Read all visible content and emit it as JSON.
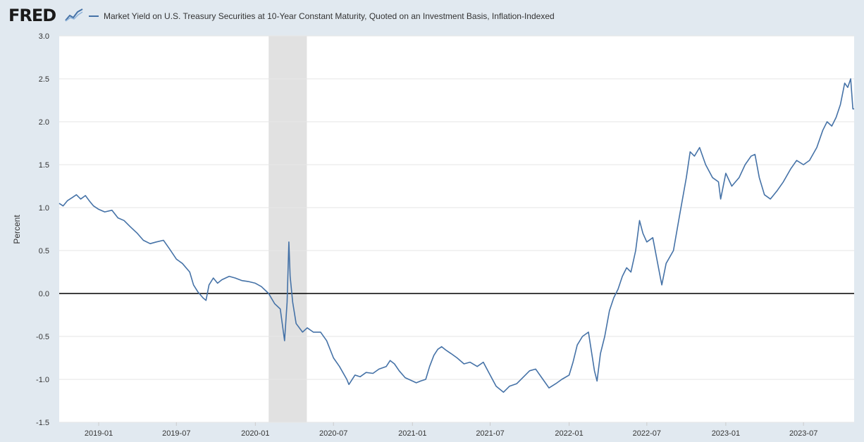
{
  "header": {
    "logo_text": "FRED",
    "logo_graph_icon": "fred-graph-icon"
  },
  "colors": {
    "line": "#4572a7",
    "recession": "#e1e1e1",
    "background": "#e1e9f0",
    "plot": "#ffffff",
    "zero_line": "#000000"
  },
  "chart_data": {
    "type": "line",
    "title": "",
    "xlabel": "",
    "ylabel": "Percent",
    "ylim": [
      -1.5,
      3.0
    ],
    "xlim": [
      "2018-10-01",
      "2023-10-27"
    ],
    "y_ticks": [
      "-1.5",
      "-1.0",
      "-0.5",
      "0.0",
      "0.5",
      "1.0",
      "1.5",
      "2.0",
      "2.5",
      "3.0"
    ],
    "x_ticks": [
      {
        "label": "2019-01",
        "date": "2019-01-01"
      },
      {
        "label": "2019-07",
        "date": "2019-07-01"
      },
      {
        "label": "2020-01",
        "date": "2020-01-01"
      },
      {
        "label": "2020-07",
        "date": "2020-07-01"
      },
      {
        "label": "2021-01",
        "date": "2021-01-01"
      },
      {
        "label": "2021-07",
        "date": "2021-07-01"
      },
      {
        "label": "2022-01",
        "date": "2022-01-01"
      },
      {
        "label": "2022-07",
        "date": "2022-07-01"
      },
      {
        "label": "2023-01",
        "date": "2023-01-01"
      },
      {
        "label": "2023-07",
        "date": "2023-07-01"
      }
    ],
    "grid": true,
    "reference_line": 0.0,
    "recession": {
      "start": "2020-02-01",
      "end": "2020-04-30"
    },
    "series": [
      {
        "name": "Market Yield on U.S. Treasury Securities at 10-Year Constant Maturity, Quoted on an Investment Basis, Inflation-Indexed",
        "points": [
          [
            "2018-10-01",
            1.05
          ],
          [
            "2018-10-10",
            1.02
          ],
          [
            "2018-10-20",
            1.08
          ],
          [
            "2018-11-01",
            1.12
          ],
          [
            "2018-11-10",
            1.15
          ],
          [
            "2018-11-20",
            1.1
          ],
          [
            "2018-12-01",
            1.14
          ],
          [
            "2018-12-10",
            1.08
          ],
          [
            "2018-12-20",
            1.02
          ],
          [
            "2019-01-01",
            0.98
          ],
          [
            "2019-01-15",
            0.95
          ],
          [
            "2019-02-01",
            0.97
          ],
          [
            "2019-02-15",
            0.88
          ],
          [
            "2019-03-01",
            0.85
          ],
          [
            "2019-03-15",
            0.78
          ],
          [
            "2019-04-01",
            0.7
          ],
          [
            "2019-04-15",
            0.62
          ],
          [
            "2019-05-01",
            0.58
          ],
          [
            "2019-05-15",
            0.6
          ],
          [
            "2019-06-01",
            0.62
          ],
          [
            "2019-06-15",
            0.52
          ],
          [
            "2019-07-01",
            0.4
          ],
          [
            "2019-07-15",
            0.35
          ],
          [
            "2019-08-01",
            0.25
          ],
          [
            "2019-08-10",
            0.1
          ],
          [
            "2019-08-20",
            0.02
          ],
          [
            "2019-09-01",
            -0.05
          ],
          [
            "2019-09-08",
            -0.08
          ],
          [
            "2019-09-15",
            0.1
          ],
          [
            "2019-09-25",
            0.18
          ],
          [
            "2019-10-05",
            0.12
          ],
          [
            "2019-10-15",
            0.16
          ],
          [
            "2019-11-01",
            0.2
          ],
          [
            "2019-11-15",
            0.18
          ],
          [
            "2019-12-01",
            0.15
          ],
          [
            "2019-12-15",
            0.14
          ],
          [
            "2020-01-01",
            0.12
          ],
          [
            "2020-01-15",
            0.08
          ],
          [
            "2020-02-01",
            0.0
          ],
          [
            "2020-02-15",
            -0.12
          ],
          [
            "2020-02-28",
            -0.18
          ],
          [
            "2020-03-09",
            -0.55
          ],
          [
            "2020-03-15",
            -0.1
          ],
          [
            "2020-03-19",
            0.6
          ],
          [
            "2020-03-22",
            0.2
          ],
          [
            "2020-03-28",
            -0.1
          ],
          [
            "2020-04-05",
            -0.35
          ],
          [
            "2020-04-20",
            -0.45
          ],
          [
            "2020-05-01",
            -0.4
          ],
          [
            "2020-05-15",
            -0.45
          ],
          [
            "2020-06-01",
            -0.45
          ],
          [
            "2020-06-15",
            -0.55
          ],
          [
            "2020-07-01",
            -0.75
          ],
          [
            "2020-07-15",
            -0.85
          ],
          [
            "2020-08-01",
            -1.0
          ],
          [
            "2020-08-06",
            -1.06
          ],
          [
            "2020-08-20",
            -0.95
          ],
          [
            "2020-09-01",
            -0.97
          ],
          [
            "2020-09-15",
            -0.92
          ],
          [
            "2020-10-01",
            -0.93
          ],
          [
            "2020-10-15",
            -0.88
          ],
          [
            "2020-11-01",
            -0.85
          ],
          [
            "2020-11-10",
            -0.78
          ],
          [
            "2020-11-20",
            -0.82
          ],
          [
            "2020-12-01",
            -0.9
          ],
          [
            "2020-12-15",
            -0.98
          ],
          [
            "2021-01-01",
            -1.02
          ],
          [
            "2021-01-10",
            -1.04
          ],
          [
            "2021-01-20",
            -1.02
          ],
          [
            "2021-02-01",
            -1.0
          ],
          [
            "2021-02-10",
            -0.85
          ],
          [
            "2021-02-20",
            -0.72
          ],
          [
            "2021-03-01",
            -0.65
          ],
          [
            "2021-03-10",
            -0.62
          ],
          [
            "2021-03-20",
            -0.66
          ],
          [
            "2021-04-01",
            -0.7
          ],
          [
            "2021-04-15",
            -0.75
          ],
          [
            "2021-05-01",
            -0.82
          ],
          [
            "2021-05-15",
            -0.8
          ],
          [
            "2021-06-01",
            -0.85
          ],
          [
            "2021-06-15",
            -0.8
          ],
          [
            "2021-07-01",
            -0.95
          ],
          [
            "2021-07-15",
            -1.08
          ],
          [
            "2021-08-01",
            -1.15
          ],
          [
            "2021-08-15",
            -1.08
          ],
          [
            "2021-09-01",
            -1.05
          ],
          [
            "2021-09-15",
            -0.98
          ],
          [
            "2021-10-01",
            -0.9
          ],
          [
            "2021-10-15",
            -0.88
          ],
          [
            "2021-11-01",
            -1.0
          ],
          [
            "2021-11-15",
            -1.1
          ],
          [
            "2021-12-01",
            -1.05
          ],
          [
            "2021-12-15",
            -1.0
          ],
          [
            "2022-01-01",
            -0.95
          ],
          [
            "2022-01-10",
            -0.8
          ],
          [
            "2022-01-20",
            -0.6
          ],
          [
            "2022-02-01",
            -0.5
          ],
          [
            "2022-02-15",
            -0.45
          ],
          [
            "2022-03-01",
            -0.9
          ],
          [
            "2022-03-07",
            -1.02
          ],
          [
            "2022-03-15",
            -0.7
          ],
          [
            "2022-03-25",
            -0.5
          ],
          [
            "2022-04-05",
            -0.2
          ],
          [
            "2022-04-15",
            -0.05
          ],
          [
            "2022-04-25",
            0.05
          ],
          [
            "2022-05-05",
            0.2
          ],
          [
            "2022-05-15",
            0.3
          ],
          [
            "2022-05-25",
            0.25
          ],
          [
            "2022-06-05",
            0.5
          ],
          [
            "2022-06-14",
            0.85
          ],
          [
            "2022-06-22",
            0.7
          ],
          [
            "2022-07-01",
            0.6
          ],
          [
            "2022-07-15",
            0.65
          ],
          [
            "2022-08-01",
            0.2
          ],
          [
            "2022-08-05",
            0.1
          ],
          [
            "2022-08-15",
            0.35
          ],
          [
            "2022-09-01",
            0.5
          ],
          [
            "2022-09-15",
            0.9
          ],
          [
            "2022-10-01",
            1.35
          ],
          [
            "2022-10-10",
            1.65
          ],
          [
            "2022-10-20",
            1.6
          ],
          [
            "2022-11-01",
            1.7
          ],
          [
            "2022-11-15",
            1.5
          ],
          [
            "2022-12-01",
            1.35
          ],
          [
            "2022-12-15",
            1.3
          ],
          [
            "2022-12-20",
            1.1
          ],
          [
            "2023-01-01",
            1.4
          ],
          [
            "2023-01-15",
            1.25
          ],
          [
            "2023-02-01",
            1.35
          ],
          [
            "2023-02-15",
            1.5
          ],
          [
            "2023-03-01",
            1.6
          ],
          [
            "2023-03-10",
            1.62
          ],
          [
            "2023-03-20",
            1.35
          ],
          [
            "2023-04-01",
            1.15
          ],
          [
            "2023-04-15",
            1.1
          ],
          [
            "2023-05-01",
            1.2
          ],
          [
            "2023-05-15",
            1.3
          ],
          [
            "2023-06-01",
            1.45
          ],
          [
            "2023-06-15",
            1.55
          ],
          [
            "2023-07-01",
            1.5
          ],
          [
            "2023-07-15",
            1.55
          ],
          [
            "2023-08-01",
            1.7
          ],
          [
            "2023-08-15",
            1.9
          ],
          [
            "2023-08-25",
            2.0
          ],
          [
            "2023-09-05",
            1.95
          ],
          [
            "2023-09-15",
            2.05
          ],
          [
            "2023-09-25",
            2.2
          ],
          [
            "2023-10-05",
            2.45
          ],
          [
            "2023-10-12",
            2.4
          ],
          [
            "2023-10-19",
            2.5
          ],
          [
            "2023-10-24",
            2.15
          ],
          [
            "2023-10-27",
            2.15
          ]
        ]
      }
    ]
  }
}
